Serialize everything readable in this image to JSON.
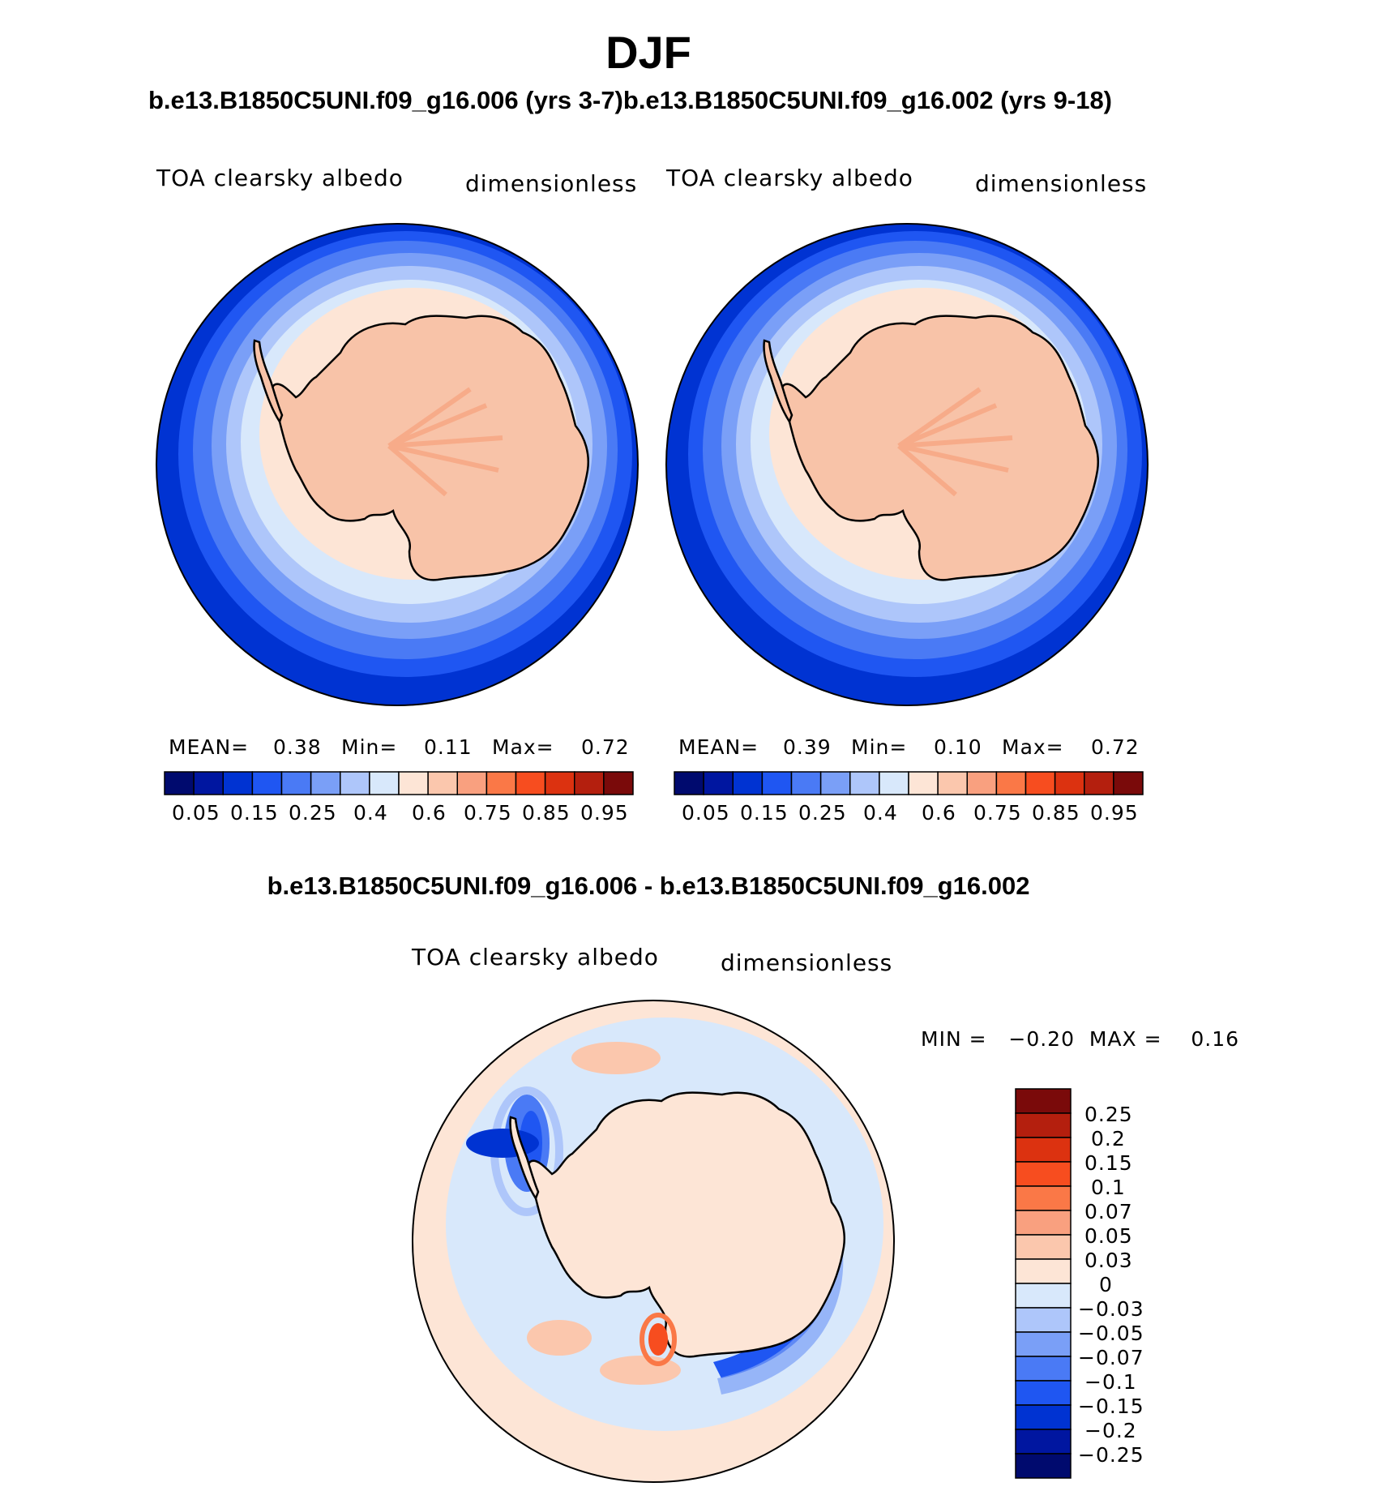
{
  "season": "DJF",
  "runs_title": "b.e13.B1850C5UNI.f09_g16.006 (yrs 3-7)b.e13.B1850C5UNI.f09_g16.002 (yrs 9-18)",
  "diff_title": "b.e13.B1850C5UNI.f09_g16.006 - b.e13.B1850C5UNI.f09_g16.002",
  "colors": {
    "albedo_scale": [
      "#000a6e",
      "#0016a0",
      "#0033d2",
      "#1f56f2",
      "#4a7af5",
      "#7a9ff7",
      "#aec6fa",
      "#d8e8fb",
      "#fde5d6",
      "#fbc7ad",
      "#f9a07f",
      "#fa7847",
      "#f74d1f",
      "#dc3210",
      "#b41f0e",
      "#7a0a0a"
    ],
    "diff_scale": [
      "#000a6e",
      "#0016a0",
      "#0033d2",
      "#1f56f2",
      "#4a7af5",
      "#7a9ff7",
      "#aec6fa",
      "#d8e8fb",
      "#fde5d6",
      "#fbc7ad",
      "#f9a07f",
      "#fa7847",
      "#f74d1f",
      "#dc3210",
      "#b41f0e",
      "#7a0a0a"
    ],
    "land": "#f8c3a8",
    "ice_streak": "#f6a581"
  },
  "panels": [
    {
      "variable": "TOA clearsky albedo",
      "units": "dimensionless",
      "mean_label": "MEAN=",
      "mean": "0.38",
      "min_label": "Min=",
      "min": "0.11",
      "max_label": "Max=",
      "max": "0.72"
    },
    {
      "variable": "TOA clearsky albedo",
      "units": "dimensionless",
      "mean_label": "MEAN=",
      "mean": "0.39",
      "min_label": "Min=",
      "min": "0.10",
      "max_label": "Max=",
      "max": "0.72"
    }
  ],
  "albedo_ticks": [
    "0.05",
    "0.15",
    "0.25",
    "0.4",
    "0.6",
    "0.75",
    "0.85",
    "0.95"
  ],
  "diff_panel": {
    "variable": "TOA clearsky albedo",
    "units": "dimensionless",
    "minmax_label": "MIN =   −0.20  MAX =    0.16"
  },
  "diff_ticks": [
    "0.25",
    "0.2",
    "0.15",
    "0.1",
    "0.07",
    "0.05",
    "0.03",
    "0",
    "−0.03",
    "−0.05",
    "−0.07",
    "−0.1",
    "−0.15",
    "−0.2",
    "−0.25"
  ]
}
